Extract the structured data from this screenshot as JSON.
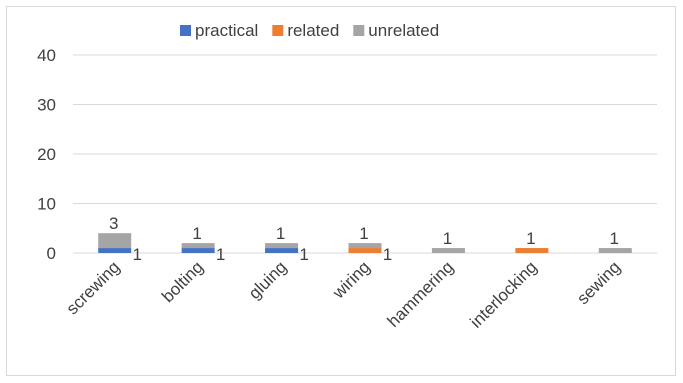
{
  "chart_data": {
    "type": "bar",
    "stacked": true,
    "categories": [
      "screwing",
      "bolting",
      "gluing",
      "wiring",
      "hammering",
      "interlocking",
      "sewing"
    ],
    "series": [
      {
        "name": "practical",
        "color": "#4472c4",
        "values": [
          1,
          1,
          1,
          0,
          0,
          0,
          0
        ]
      },
      {
        "name": "related",
        "color": "#ed7d31",
        "values": [
          0,
          0,
          0,
          1,
          0,
          1,
          0
        ]
      },
      {
        "name": "unrelated",
        "color": "#a5a5a5",
        "values": [
          3,
          1,
          1,
          1,
          1,
          0,
          1
        ]
      }
    ],
    "data_labels": [
      {
        "category": "screwing",
        "top": "3",
        "side": "1"
      },
      {
        "category": "bolting",
        "top": "1",
        "side": "1"
      },
      {
        "category": "gluing",
        "top": "1",
        "side": "1"
      },
      {
        "category": "wiring",
        "top": "1",
        "side": "1"
      },
      {
        "category": "hammering",
        "top": "1",
        "side": ""
      },
      {
        "category": "interlocking",
        "top": "1",
        "side": ""
      },
      {
        "category": "sewing",
        "top": "1",
        "side": ""
      }
    ],
    "yticks": [
      "0",
      "10",
      "20",
      "30",
      "40"
    ],
    "ylim": [
      0,
      40
    ],
    "grid": true,
    "legend_position": "top"
  }
}
